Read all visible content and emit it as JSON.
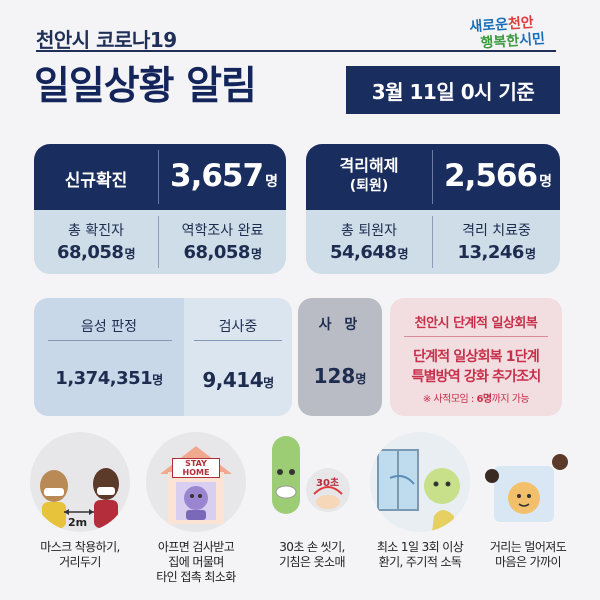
{
  "header": {
    "subtitle": "천안시 코로나19",
    "title": "일일상황 알림",
    "date": "3월 11일 0시 기준",
    "logo_line1a": "새로운",
    "logo_line1b": "천안",
    "logo_line2a": "행복한",
    "logo_line2b": "시민"
  },
  "confirmed": {
    "label": "신규확진",
    "value": "3,657",
    "unit": "명",
    "total_label": "총 확진자",
    "total_value": "68,058",
    "epi_label": "역학조사 완료",
    "epi_value": "68,058"
  },
  "released": {
    "label1": "격리해제",
    "label2": "(퇴원)",
    "value": "2,566",
    "unit": "명",
    "total_label": "총 퇴원자",
    "total_value": "54,648",
    "treat_label": "격리 치료중",
    "treat_value": "13,246"
  },
  "tests": {
    "negative_label": "음성 판정",
    "negative_value": "1,374,351",
    "pending_label": "검사중",
    "pending_value": "9,414",
    "unit": "명"
  },
  "deaths": {
    "label": "사 망",
    "value": "128",
    "unit": "명"
  },
  "recovery": {
    "title": "천안시 단계적 일상회복",
    "line1": "단계적 일상회복 1단계",
    "line2": "특별방역 강화 추가조치",
    "note_prefix": "※ 사적모임 : ",
    "note_bold": "6명",
    "note_suffix": "까지 가능"
  },
  "illustrations": {
    "stay_home_sign": "STAY HOME",
    "distance_label": "2m",
    "sign_30": "30초"
  },
  "captions": [
    {
      "line1": "마스크 착용하기,",
      "line2": "거리두기",
      "line3": ""
    },
    {
      "line1": "아프면 검사받고",
      "line2": "집에 머물며",
      "line3": "타인 접촉 최소화"
    },
    {
      "line1": "30초 손 씻기,",
      "line2": "기침은 옷소매",
      "line3": ""
    },
    {
      "line1": "최소 1일 3회 이상",
      "line2": "환기, 주기적 소독",
      "line3": ""
    },
    {
      "line1": "거리는 멀어져도",
      "line2": "마음은 가까이",
      "line3": ""
    }
  ],
  "colors": {
    "navy": "#1a2d5f",
    "light_blue": "#cfdde9",
    "gray": "#b9bcc4",
    "pink_bg": "#f2dde0",
    "red": "#c6304a"
  }
}
